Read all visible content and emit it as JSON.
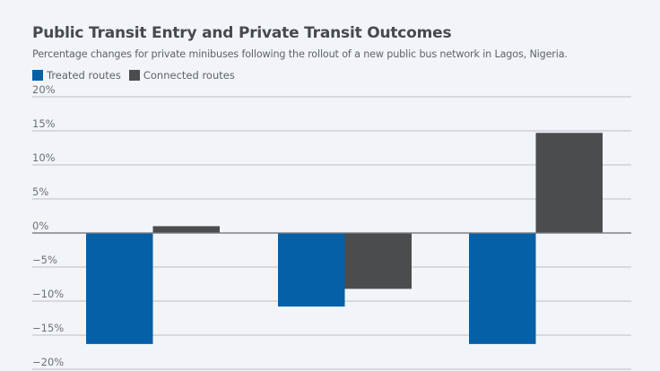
{
  "header": {
    "title": "Public Transit Entry and Private Transit Outcomes",
    "subtitle": "Percentage changes for private minibuses following the rollout of a new public bus network in Lagos, Nigeria."
  },
  "colors": {
    "treated": "#0660a8",
    "connected": "#4b4c4e",
    "grid": "#c6cacd",
    "zero_line": "#7b7f83",
    "background": "#f1f5f9"
  },
  "chart_data": {
    "type": "bar",
    "title": "Public Transit Entry and Private Transit Outcomes",
    "subtitle": "Percentage changes for private minibuses following the rollout of a new public bus network in Lagos, Nigeria.",
    "xlabel": "",
    "ylabel": "",
    "categories": [
      "",
      "",
      ""
    ],
    "series": [
      {
        "name": "Treated routes",
        "color": "#0660a8",
        "values": [
          -16.3,
          -10.8,
          -16.3
        ]
      },
      {
        "name": "Connected routes",
        "color": "#4b4c4e",
        "values": [
          1.0,
          -8.2,
          14.7
        ]
      }
    ],
    "ylim": [
      -20,
      20
    ],
    "yticks": [
      20,
      15,
      10,
      5,
      0,
      -5,
      -10,
      -15,
      -20
    ],
    "ytick_labels": [
      "20%",
      "15%",
      "10%",
      "5%",
      "0%",
      "−5%",
      "−10%",
      "−15%",
      "−20%"
    ],
    "grid": true,
    "legend": "top-left"
  }
}
